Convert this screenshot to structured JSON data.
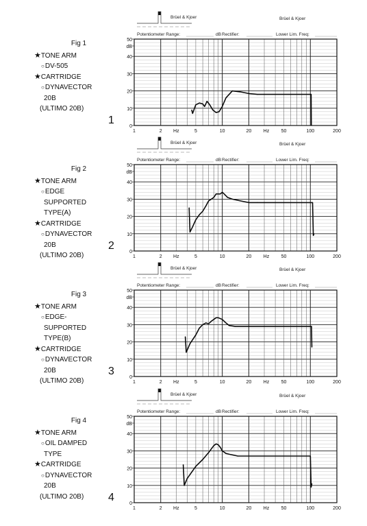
{
  "header": {
    "brand_left": "Brüel & Kjoer",
    "brand_right": "Brüel & Kjoer",
    "potentiometer_label": "Potentiometer Range:",
    "db_label": "dB",
    "rectifier_label": "Rectifier:",
    "lower_lim_label": "Lower Lim. Freq:"
  },
  "axis": {
    "y_ticks": [
      "50",
      "dB",
      "40",
      "30",
      "20",
      "10",
      "0"
    ],
    "x_ticks": [
      "1",
      "2",
      "Hz",
      "5",
      "10",
      "20",
      "Hz",
      "50",
      "100",
      "200"
    ]
  },
  "figures": [
    {
      "title": "Fig 1",
      "number": "1",
      "lines": [
        {
          "style": "star",
          "text": "TONE ARM"
        },
        {
          "style": "circ",
          "text": "DV-505"
        },
        {
          "style": "star",
          "text": "CARTRIDGE"
        },
        {
          "style": "circ",
          "text": "DYNAVECTOR"
        },
        {
          "style": "plain",
          "text": "20B"
        },
        {
          "style": "paren",
          "text": "(ULTIMO 20B)"
        }
      ]
    },
    {
      "title": "Fig 2",
      "number": "2",
      "lines": [
        {
          "style": "star",
          "text": "TONE ARM"
        },
        {
          "style": "circ",
          "text": "EDGE"
        },
        {
          "style": "plain",
          "text": "SUPPORTED"
        },
        {
          "style": "plain",
          "text": "TYPE(A)"
        },
        {
          "style": "star",
          "text": "CARTRIDGE"
        },
        {
          "style": "circ",
          "text": "DYNAVECTOR"
        },
        {
          "style": "plain",
          "text": "20B"
        },
        {
          "style": "paren",
          "text": "(ULTIMO 20B)"
        }
      ]
    },
    {
      "title": "Fig 3",
      "number": "3",
      "lines": [
        {
          "style": "star",
          "text": "TONE ARM"
        },
        {
          "style": "circ",
          "text": "EDGE-"
        },
        {
          "style": "plain",
          "text": "SUPPORTED"
        },
        {
          "style": "plain",
          "text": "TYPE(B)"
        },
        {
          "style": "star",
          "text": "CARTRIDGE"
        },
        {
          "style": "circ",
          "text": "DYNAVECTOR"
        },
        {
          "style": "plain",
          "text": "20B"
        },
        {
          "style": "paren",
          "text": "(ULTIMO 20B)"
        }
      ]
    },
    {
      "title": "Fig 4",
      "number": "4",
      "lines": [
        {
          "style": "star",
          "text": "TONE ARM"
        },
        {
          "style": "circ",
          "text": "OIL DAMPED"
        },
        {
          "style": "plain",
          "text": "TYPE"
        },
        {
          "style": "star",
          "text": "CARTRIDGE"
        },
        {
          "style": "circ",
          "text": "DYNAVECTOR"
        },
        {
          "style": "plain",
          "text": "20B"
        },
        {
          "style": "paren",
          "text": "(ULTIMO 20B)"
        }
      ]
    }
  ],
  "chart_data": [
    {
      "type": "line",
      "x_scale": "log",
      "xlim": [
        1,
        200
      ],
      "ylim": [
        0,
        50
      ],
      "grid": true,
      "series": [
        {
          "x": [
            4.5,
            4.6,
            5.0,
            5.5,
            6.0,
            6.3,
            6.7,
            7.2,
            7.8,
            8.5,
            9.2,
            10.0,
            11.0,
            13.0,
            16.0,
            20.0,
            25.0,
            30.0,
            40.0,
            50.0,
            60.0,
            80.0,
            100.0,
            102.0,
            102.5
          ],
          "y": [
            9,
            7,
            12,
            13,
            12.5,
            11,
            14,
            12,
            9,
            7.5,
            8,
            11,
            16,
            20,
            19.5,
            18.5,
            18,
            18,
            18,
            18,
            18,
            18,
            18,
            18,
            0
          ]
        }
      ]
    },
    {
      "type": "line",
      "x_scale": "log",
      "xlim": [
        1,
        200
      ],
      "ylim": [
        0,
        50
      ],
      "grid": true,
      "series": [
        {
          "x": [
            4.2,
            4.3,
            4.6,
            5.0,
            5.5,
            6.0,
            6.5,
            7.0,
            7.5,
            8.0,
            8.5,
            9.5,
            10.0,
            10.5,
            11.5,
            13.0,
            16.0,
            20.0,
            25.0,
            30.0,
            40.0,
            50.0,
            60.0,
            80.0,
            100.0,
            106.0,
            108.0,
            110.0
          ],
          "y": [
            25,
            11,
            14,
            18,
            21,
            23,
            26,
            29,
            30,
            31,
            33,
            33,
            34,
            33,
            31,
            30,
            29,
            28,
            28,
            28,
            28,
            28,
            28,
            28,
            28,
            28,
            9,
            10
          ]
        }
      ]
    },
    {
      "type": "line",
      "x_scale": "log",
      "xlim": [
        1,
        200
      ],
      "ylim": [
        0,
        50
      ],
      "grid": true,
      "series": [
        {
          "x": [
            3.8,
            3.9,
            4.3,
            5.0,
            5.5,
            6.0,
            6.5,
            7.0,
            7.5,
            8.0,
            8.5,
            9.0,
            10.0,
            11.0,
            12.0,
            14.0,
            20.0,
            30.0,
            50.0,
            80.0,
            100.0,
            103.0,
            104.0
          ],
          "y": [
            23,
            14,
            19,
            24,
            28,
            30,
            31,
            30.5,
            32,
            33,
            34,
            34,
            33,
            31,
            29.5,
            29,
            29,
            29,
            29,
            29,
            29,
            29,
            17
          ]
        }
      ]
    },
    {
      "type": "line",
      "x_scale": "log",
      "xlim": [
        1,
        200
      ],
      "ylim": [
        0,
        50
      ],
      "grid": true,
      "series": [
        {
          "x": [
            3.6,
            3.7,
            4.0,
            5.0,
            6.0,
            7.0,
            8.0,
            8.5,
            9.0,
            9.5,
            10.0,
            11.0,
            12.0,
            15.0,
            20.0,
            30.0,
            50.0,
            70.0,
            90.0,
            100.0,
            102.0,
            104.0
          ],
          "y": [
            22,
            10,
            14,
            21,
            25,
            29,
            33,
            34,
            33.5,
            32,
            30,
            28.5,
            28,
            27,
            27,
            27,
            27,
            27,
            27,
            27,
            9,
            11
          ]
        }
      ]
    }
  ]
}
